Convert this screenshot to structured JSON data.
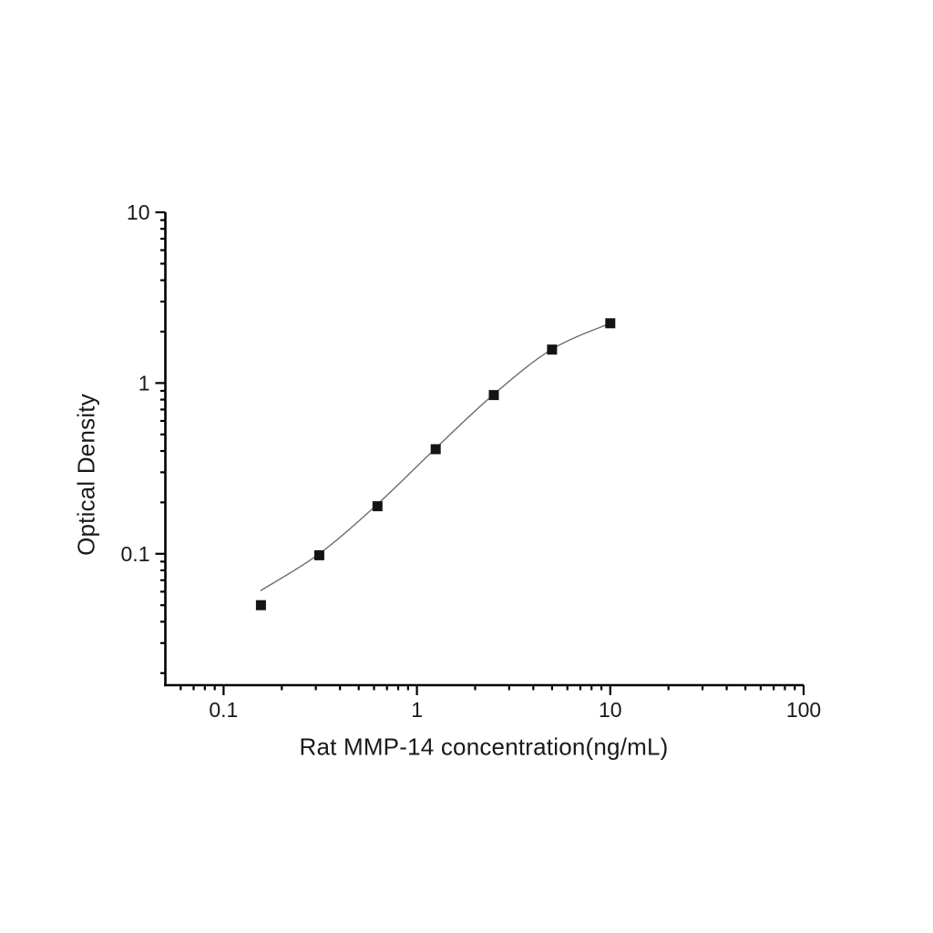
{
  "figure": {
    "background": "#ffffff",
    "text_color": "#1a1a1a",
    "axis_color": "#000000"
  },
  "chart_data": {
    "type": "line",
    "title": "",
    "xlabel": "Rat MMP-14 concentration(ng/mL)",
    "ylabel": "Optical Density",
    "x_scale": "log",
    "y_scale": "log",
    "xlim": [
      0.05,
      100
    ],
    "ylim": [
      0.017,
      10
    ],
    "grid": false,
    "legend": null,
    "x_ticks": {
      "major": [
        0.1,
        1,
        10,
        100
      ],
      "labels": [
        "0.1",
        "1",
        "10",
        "100"
      ],
      "minor_rule": "2-9 per decade"
    },
    "y_ticks": {
      "major": [
        0.1,
        1,
        10
      ],
      "labels": [
        "0.1",
        "1",
        "10"
      ],
      "minor_rule": "2-9 per decade"
    },
    "series": [
      {
        "name": "standard-points",
        "kind": "scatter",
        "marker": "filled-square",
        "marker_size": 11,
        "color": "#141414",
        "x": [
          0.156,
          0.3125,
          0.625,
          1.25,
          2.5,
          5,
          10
        ],
        "y": [
          0.05,
          0.098,
          0.19,
          0.41,
          0.85,
          1.57,
          2.24
        ]
      },
      {
        "name": "fit-curve",
        "kind": "line",
        "color": "#6e6e6e",
        "width": 1.4,
        "x": [
          0.156,
          0.3125,
          0.625,
          1.25,
          2.5,
          5,
          10
        ],
        "y": [
          0.061,
          0.1,
          0.195,
          0.415,
          0.86,
          1.58,
          2.24
        ]
      }
    ]
  }
}
